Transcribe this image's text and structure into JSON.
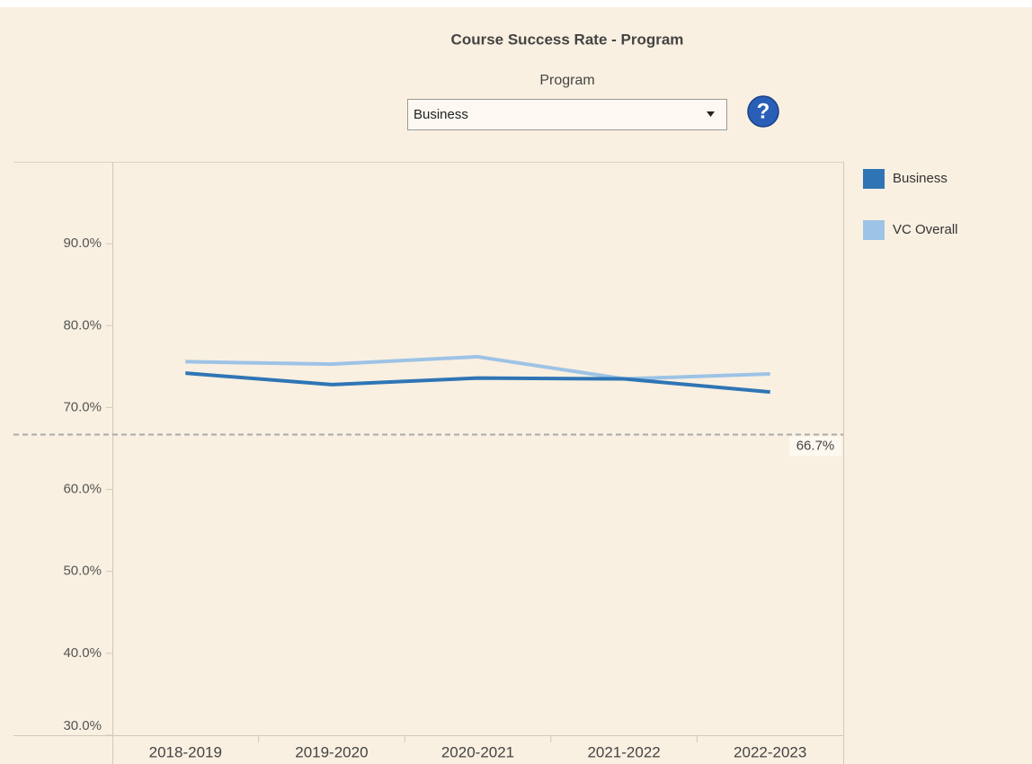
{
  "filter": {
    "label": "Program",
    "value": "Business"
  },
  "help_icon": "?",
  "chart_data": {
    "type": "line",
    "title": "Course Success Rate - Program",
    "categories": [
      "2018-2019",
      "2019-2020",
      "2020-2021",
      "2021-2022",
      "2022-2023"
    ],
    "series": [
      {
        "name": "Business",
        "color": "#2f75b5",
        "values": [
          74.2,
          72.8,
          73.6,
          73.5,
          71.9
        ]
      },
      {
        "name": "VC Overall",
        "color": "#9dc3e6",
        "values": [
          75.6,
          75.3,
          76.2,
          73.5,
          74.1
        ]
      }
    ],
    "ylim": [
      30,
      100
    ],
    "yticks": [
      {
        "value": 30,
        "label": "30.0%"
      },
      {
        "value": 40,
        "label": "40.0%"
      },
      {
        "value": 50,
        "label": "50.0%"
      },
      {
        "value": 60,
        "label": "60.0%"
      },
      {
        "value": 70,
        "label": "70.0%"
      },
      {
        "value": 80,
        "label": "80.0%"
      },
      {
        "value": 90,
        "label": "90.0%"
      }
    ],
    "reference_line": {
      "value": 66.7,
      "label": "66.7%",
      "color": "#aaaaaa"
    },
    "grid": false,
    "legend": "right"
  }
}
